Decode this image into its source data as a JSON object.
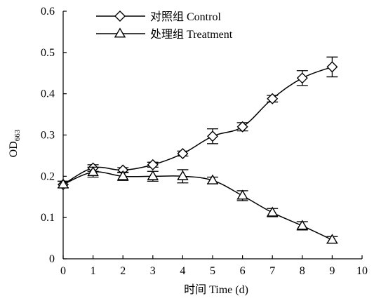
{
  "chart_data": {
    "type": "line",
    "title": "",
    "xlabel": "时间 Time (d)",
    "ylabel": {
      "main": "OD",
      "sub": "663"
    },
    "xlim": [
      0,
      10
    ],
    "ylim": [
      0,
      0.6
    ],
    "xticks": [
      "0",
      "1",
      "2",
      "3",
      "4",
      "5",
      "6",
      "7",
      "8",
      "9",
      "10"
    ],
    "yticks": [
      "0",
      "0.1",
      "0.2",
      "0.3",
      "0.4",
      "0.5",
      "0.6"
    ],
    "grid": false,
    "legend_position": "top-center",
    "x": [
      0,
      1,
      2,
      3,
      4,
      5,
      6,
      7,
      8,
      9
    ],
    "series": [
      {
        "name": "对照组 Control",
        "marker": "diamond",
        "values": [
          0.18,
          0.22,
          0.215,
          0.228,
          0.255,
          0.297,
          0.32,
          0.388,
          0.438,
          0.465
        ],
        "errors": [
          0.008,
          0.008,
          0.006,
          0.006,
          0.006,
          0.018,
          0.01,
          0.008,
          0.018,
          0.024
        ]
      },
      {
        "name": "处理组 Treatment",
        "marker": "triangle",
        "values": [
          0.18,
          0.21,
          0.2,
          0.2,
          0.2,
          0.19,
          0.153,
          0.112,
          0.08,
          0.046
        ],
        "errors": [
          0.008,
          0.012,
          0.01,
          0.012,
          0.016,
          0.008,
          0.012,
          0.01,
          0.01,
          0.008
        ]
      }
    ]
  }
}
